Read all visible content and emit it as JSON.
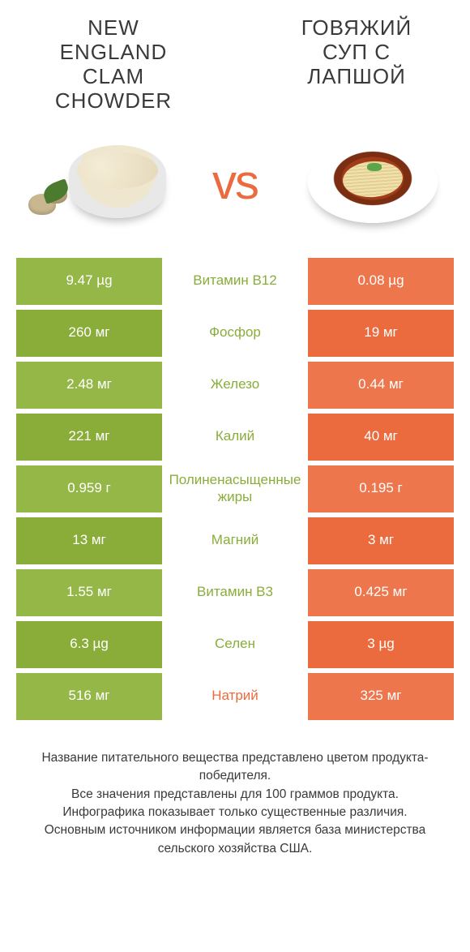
{
  "header": {
    "left_title": "NEW ENGLAND CLAM CHOWDER",
    "right_title": "ГОВЯЖИЙ СУП С ЛАПШОЙ",
    "vs_text": "vs"
  },
  "colors": {
    "left_bg": "#8aad3a",
    "left_bg_alt": "#94b748",
    "right_bg": "#eb6b3e",
    "right_bg_alt": "#ee764c",
    "label_green": "#8aad3a",
    "label_orange": "#eb6b3e",
    "text_white": "#ffffff",
    "body_text": "#3a3a3a"
  },
  "comparison": {
    "rows": [
      {
        "left": "9.47 µg",
        "label": "Витамин B12",
        "winner": "left",
        "right": "0.08 µg"
      },
      {
        "left": "260 мг",
        "label": "Фосфор",
        "winner": "left",
        "right": "19 мг"
      },
      {
        "left": "2.48 мг",
        "label": "Железо",
        "winner": "left",
        "right": "0.44 мг"
      },
      {
        "left": "221 мг",
        "label": "Калий",
        "winner": "left",
        "right": "40 мг"
      },
      {
        "left": "0.959 г",
        "label": "Полиненасыщенные жиры",
        "winner": "left",
        "right": "0.195 г"
      },
      {
        "left": "13 мг",
        "label": "Магний",
        "winner": "left",
        "right": "3 мг"
      },
      {
        "left": "1.55 мг",
        "label": "Витамин B3",
        "winner": "left",
        "right": "0.425 мг"
      },
      {
        "left": "6.3 µg",
        "label": "Селен",
        "winner": "left",
        "right": "3 µg"
      },
      {
        "left": "516 мг",
        "label": "Натрий",
        "winner": "right",
        "right": "325 мг"
      }
    ]
  },
  "footer": {
    "line1": "Название питательного вещества представлено цветом продукта-победителя.",
    "line2": "Все значения представлены для 100 граммов продукта.",
    "line3": "Инфографика показывает только существенные различия.",
    "line4": "Основным источником информации является база министерства сельского хозяйства США."
  }
}
